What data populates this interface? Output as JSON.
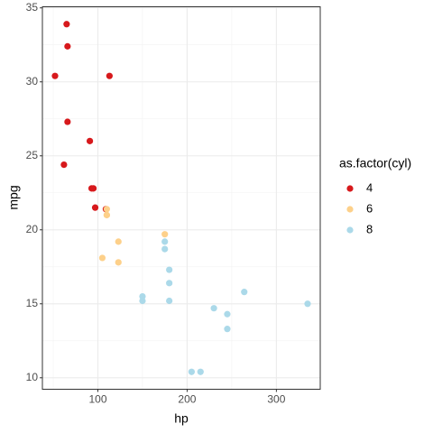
{
  "chart_data": {
    "type": "scatter",
    "x_label": "hp",
    "y_label": "mpg",
    "legend_title": "as.factor(cyl)",
    "legend_position": "right",
    "grid": true,
    "xlim": [
      37.85,
      349.15
    ],
    "ylim": [
      9.225,
      35.075
    ],
    "xticks": [
      100,
      200,
      300
    ],
    "yticks": [
      10,
      15,
      20,
      25,
      30,
      35
    ],
    "x_minor_ticks": [
      50,
      150,
      250
    ],
    "y_minor_ticks": [
      12.5,
      17.5,
      22.5,
      27.5,
      32.5
    ],
    "series": [
      {
        "name": "4",
        "color": "#d7191c",
        "x": [
          93,
          62,
          95,
          66,
          52,
          65,
          97,
          66,
          91,
          113,
          109
        ],
        "values": [
          22.8,
          24.4,
          22.8,
          32.4,
          30.4,
          33.9,
          21.5,
          27.3,
          26.0,
          30.4,
          21.4
        ]
      },
      {
        "name": "6",
        "color": "#fdd08a",
        "x": [
          110,
          110,
          110,
          105,
          123,
          123,
          175
        ],
        "values": [
          21.0,
          21.0,
          21.4,
          18.1,
          19.2,
          17.8,
          19.7
        ]
      },
      {
        "name": "8",
        "color": "#abd9e9",
        "x": [
          175,
          245,
          180,
          180,
          180,
          205,
          215,
          230,
          150,
          150,
          245,
          175,
          264,
          335
        ],
        "values": [
          18.7,
          14.3,
          16.4,
          17.3,
          15.2,
          10.4,
          10.4,
          14.7,
          15.5,
          15.2,
          13.3,
          19.2,
          15.8,
          15.0
        ]
      }
    ]
  }
}
